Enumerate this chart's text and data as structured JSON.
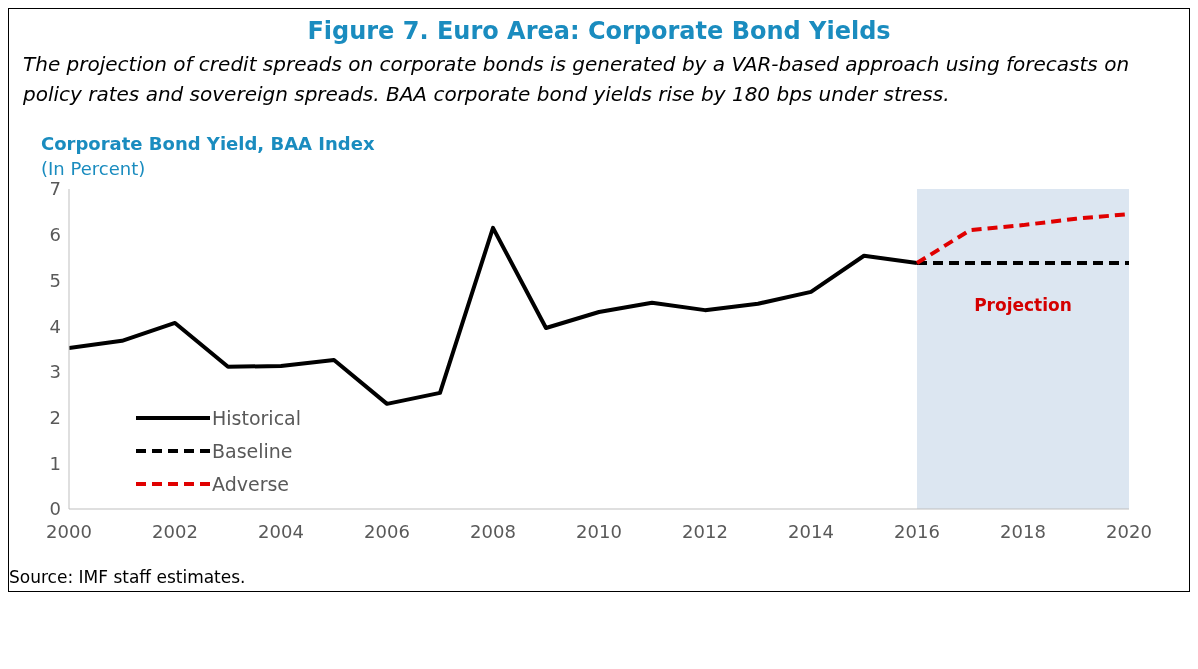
{
  "chart_data": {
    "type": "line",
    "title": "Figure 7. Euro Area: Corporate Bond Yields",
    "subtitle": "The projection of credit spreads on corporate bonds is generated by a VAR-based approach using forecasts on policy rates and sovereign spreads. BAA corporate bond yields rise by 180 bps under stress.",
    "ylabel": "Corporate Bond Yield, BAA Index",
    "annotations": [
      "(In Percent)",
      "Source: IMF staff estimates."
    ],
    "series": [
      {
        "name": "Historical",
        "color": "#000000",
        "line_style": "solid",
        "x": [
          2000,
          2001,
          2002,
          2003,
          2004,
          2005,
          2006,
          2007,
          2008,
          2009,
          2010,
          2011,
          2012,
          2013,
          2014,
          2015,
          2016
        ],
        "values": [
          3.52,
          3.68,
          4.07,
          3.11,
          3.13,
          3.26,
          2.3,
          2.54,
          6.15,
          3.96,
          4.31,
          4.51,
          4.35,
          4.49,
          4.75,
          5.54,
          5.38
        ]
      },
      {
        "name": "Baseline",
        "color": "#000000",
        "line_style": "dashed",
        "x": [
          2016,
          2017,
          2018,
          2019,
          2020
        ],
        "values": [
          5.38,
          5.38,
          5.38,
          5.38,
          5.38
        ]
      },
      {
        "name": "Adverse",
        "color": "#e00000",
        "line_style": "dashed",
        "x": [
          2016,
          2017,
          2018,
          2019,
          2020
        ],
        "values": [
          5.38,
          6.1,
          6.21,
          6.35,
          6.45
        ]
      }
    ],
    "xlim": [
      2000,
      2020
    ],
    "xticks": [
      2000,
      2002,
      2004,
      2006,
      2008,
      2010,
      2012,
      2014,
      2016,
      2018,
      2020
    ],
    "ylim": [
      0,
      7
    ],
    "yticks": [
      0,
      1,
      2,
      3,
      4,
      5,
      6,
      7
    ],
    "bands": [
      {
        "axis": "x",
        "from": 2016,
        "to": 2020,
        "label": "Projection",
        "color": "#dce6f1"
      }
    ],
    "legend": "bottom left",
    "grid": false,
    "marker": "none"
  }
}
